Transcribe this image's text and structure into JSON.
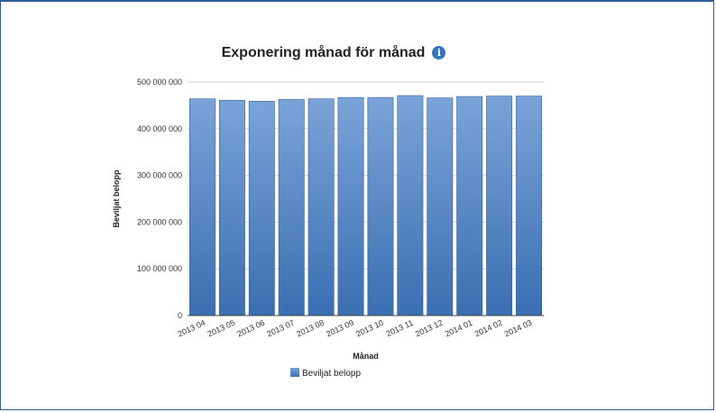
{
  "chart_data": {
    "type": "bar",
    "title": "Exponering månad för månad",
    "xlabel": "Månad",
    "ylabel": "Beviljat belopp",
    "categories": [
      "2013 04",
      "2013 05",
      "2013 06",
      "2013 07",
      "2013 08",
      "2013 09",
      "2013 10",
      "2013 11",
      "2013 12",
      "2014 01",
      "2014 02",
      "2014 03"
    ],
    "series": [
      {
        "name": "Beviljat belopp",
        "values": [
          464000000,
          461000000,
          459000000,
          463000000,
          464000000,
          467000000,
          467000000,
          471000000,
          466000000,
          469000000,
          470000000,
          470000000
        ]
      }
    ],
    "ylim": [
      0,
      500000000
    ],
    "yticks": [
      0,
      100000000,
      200000000,
      300000000,
      400000000,
      500000000
    ],
    "ytick_labels": [
      "0",
      "100 000 000",
      "200 000 000",
      "300 000 000",
      "400 000 000",
      "500 000 000"
    ],
    "grid": true,
    "legend_position": "bottom-left",
    "colors": {
      "bar_top": "#7aa3d8",
      "bar_bottom": "#3a6fb2",
      "bar_edge": "#2e5d97",
      "info_icon": "#2f74c0",
      "frame": "#2f5d9a"
    }
  },
  "info_icon": {
    "glyph": "i",
    "name": "info-icon"
  }
}
